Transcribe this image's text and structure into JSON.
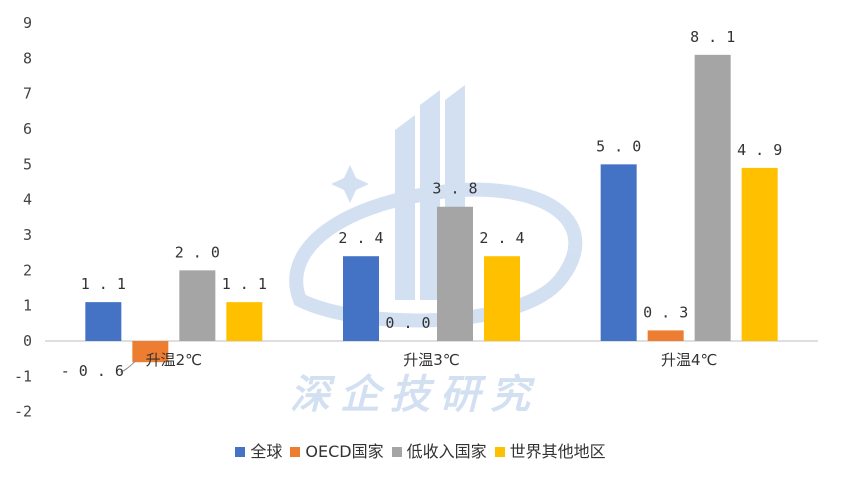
{
  "chart_data": {
    "type": "bar",
    "categories": [
      "升温2℃",
      "升温3℃",
      "升温4℃"
    ],
    "series": [
      {
        "name": "全球",
        "color": "#4472C4",
        "values": [
          1.1,
          2.4,
          5.0
        ],
        "labels": [
          "1.1",
          "2.4",
          "5.0"
        ]
      },
      {
        "name": "OECD国家",
        "color": "#ED7D31",
        "values": [
          -0.6,
          0.0,
          0.3
        ],
        "labels": [
          "-0.6",
          "0.0",
          "0.3"
        ]
      },
      {
        "name": "低收入国家",
        "color": "#A5A5A5",
        "values": [
          2.0,
          3.8,
          8.1
        ],
        "labels": [
          "2.0",
          "3.8",
          "8.1"
        ]
      },
      {
        "name": "世界其他地区",
        "color": "#FFC000",
        "values": [
          1.1,
          2.4,
          4.9
        ],
        "labels": [
          "1.1",
          "2.4",
          "4.9"
        ]
      }
    ],
    "yticks": [
      "9",
      "8",
      "7",
      "6",
      "5",
      "4",
      "3",
      "2",
      "1",
      "0",
      "-1",
      "-2"
    ],
    "ylim": [
      -2,
      9
    ],
    "grid": false,
    "legend_position": "bottom",
    "watermark": "深企技研究"
  }
}
